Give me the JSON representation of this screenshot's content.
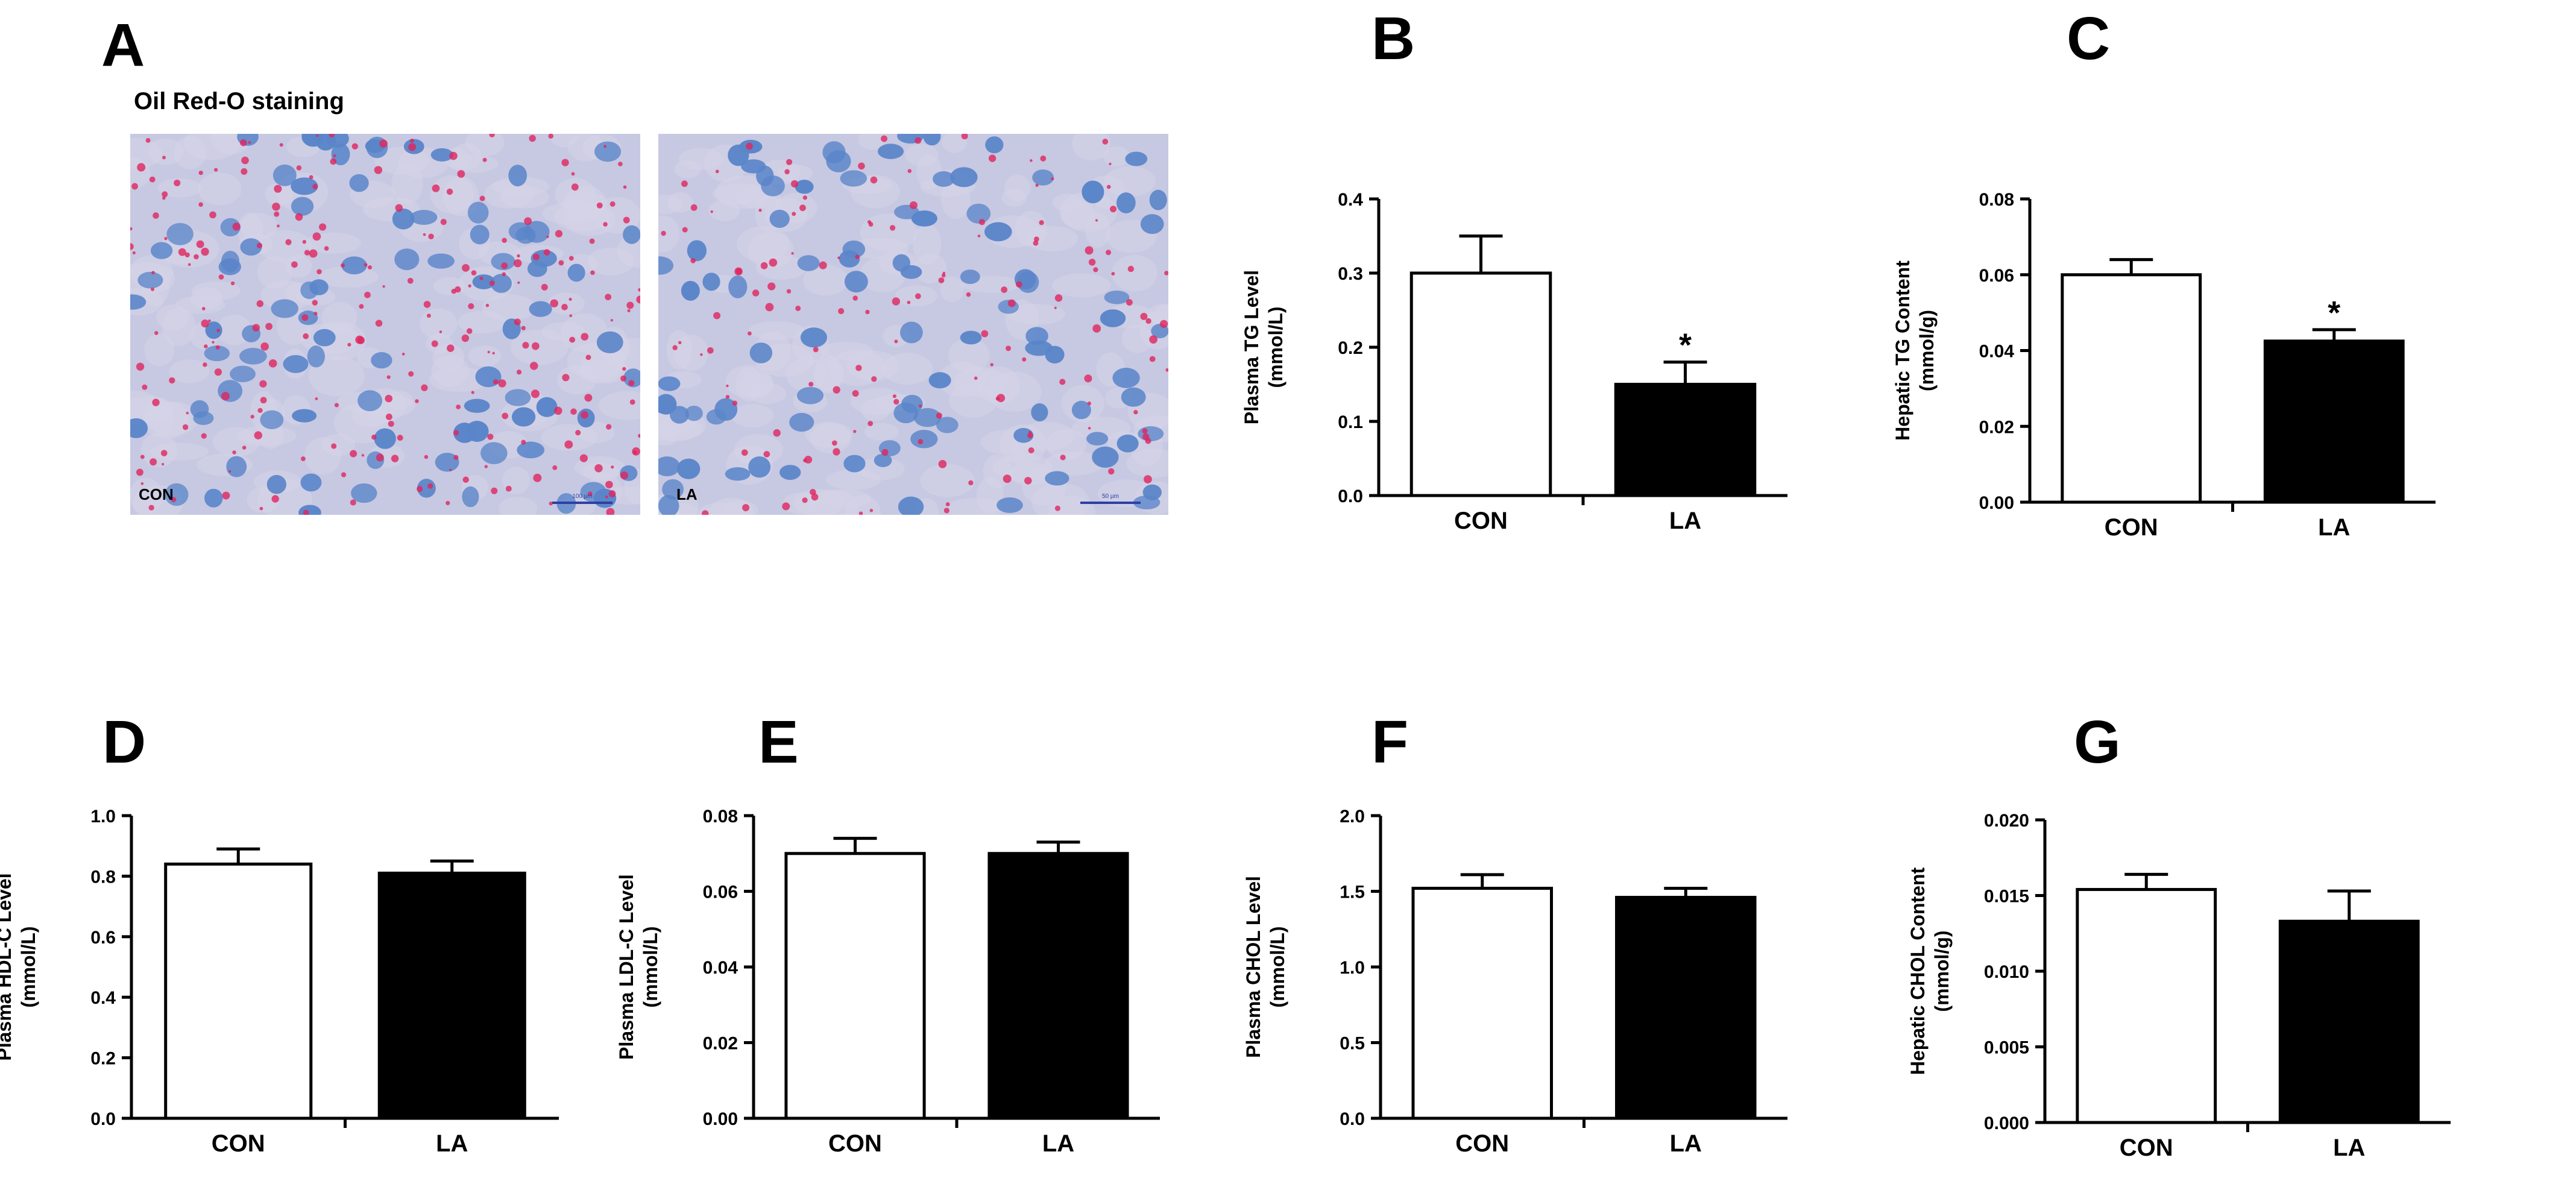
{
  "panel_a": {
    "letter": "A",
    "title": "Oil Red-O staining",
    "images": [
      {
        "label": "CON",
        "scale_bar": "100 µm"
      },
      {
        "label": "LA",
        "scale_bar": "50 µm"
      }
    ],
    "colors": {
      "background": "#c7c8e2",
      "nucleus": "#5a85c9",
      "lipid": "#e0245e"
    }
  },
  "chart_data": [
    {
      "id": "B",
      "type": "bar",
      "categories": [
        "CON",
        "LA"
      ],
      "values": [
        0.3,
        0.15
      ],
      "errors": [
        0.05,
        0.03
      ],
      "significance": [
        "",
        "*"
      ],
      "ylabel": [
        "Plasma TG Level",
        "(mmol/L)"
      ],
      "ylim": [
        0,
        0.4
      ],
      "ticks": [
        "0.0",
        "0.1",
        "0.2",
        "0.3",
        "0.4"
      ],
      "colors": [
        "#ffffff",
        "#000000"
      ]
    },
    {
      "id": "C",
      "type": "bar",
      "categories": [
        "CON",
        "LA"
      ],
      "values": [
        0.06,
        0.0425
      ],
      "errors": [
        0.004,
        0.003
      ],
      "significance": [
        "",
        "*"
      ],
      "ylabel": [
        "Hepatic TG Content",
        "(mmol/g)"
      ],
      "ylim": [
        0,
        0.08
      ],
      "ticks": [
        "0.00",
        "0.02",
        "0.04",
        "0.06",
        "0.08"
      ],
      "colors": [
        "#ffffff",
        "#000000"
      ]
    },
    {
      "id": "D",
      "type": "bar",
      "categories": [
        "CON",
        "LA"
      ],
      "values": [
        0.84,
        0.81
      ],
      "errors": [
        0.05,
        0.04
      ],
      "significance": [
        "",
        ""
      ],
      "ylabel": [
        "Plasma HDL-C  Level",
        "(mmol/L)"
      ],
      "ylim": [
        0,
        1.0
      ],
      "ticks": [
        "0.0",
        "0.2",
        "0.4",
        "0.6",
        "0.8",
        "1.0"
      ],
      "colors": [
        "#ffffff",
        "#000000"
      ]
    },
    {
      "id": "E",
      "type": "bar",
      "categories": [
        "CON",
        "LA"
      ],
      "values": [
        0.07,
        0.07
      ],
      "errors": [
        0.004,
        0.003
      ],
      "significance": [
        "",
        ""
      ],
      "ylabel": [
        "Plasma LDL-C  Level",
        "(mmol/L)"
      ],
      "ylim": [
        0,
        0.08
      ],
      "ticks": [
        "0.00",
        "0.02",
        "0.04",
        "0.06",
        "0.08"
      ],
      "colors": [
        "#ffffff",
        "#000000"
      ]
    },
    {
      "id": "F",
      "type": "bar",
      "categories": [
        "CON",
        "LA"
      ],
      "values": [
        1.52,
        1.46
      ],
      "errors": [
        0.09,
        0.06
      ],
      "significance": [
        "",
        ""
      ],
      "ylabel": [
        "Plasma CHOL  Level",
        "(mmol/L)"
      ],
      "ylim": [
        0,
        2.0
      ],
      "ticks": [
        "0.0",
        "0.5",
        "1.0",
        "1.5",
        "2.0"
      ],
      "colors": [
        "#ffffff",
        "#000000"
      ]
    },
    {
      "id": "G",
      "type": "bar",
      "categories": [
        "CON",
        "LA"
      ],
      "values": [
        0.0154,
        0.0133
      ],
      "errors": [
        0.001,
        0.002
      ],
      "significance": [
        "",
        ""
      ],
      "ylabel": [
        "Hepatic CHOL Content",
        "(mmol/g)"
      ],
      "ylim": [
        0,
        0.02
      ],
      "ticks": [
        "0.000",
        "0.005",
        "0.010",
        "0.015",
        "0.020"
      ],
      "colors": [
        "#ffffff",
        "#000000"
      ]
    }
  ]
}
